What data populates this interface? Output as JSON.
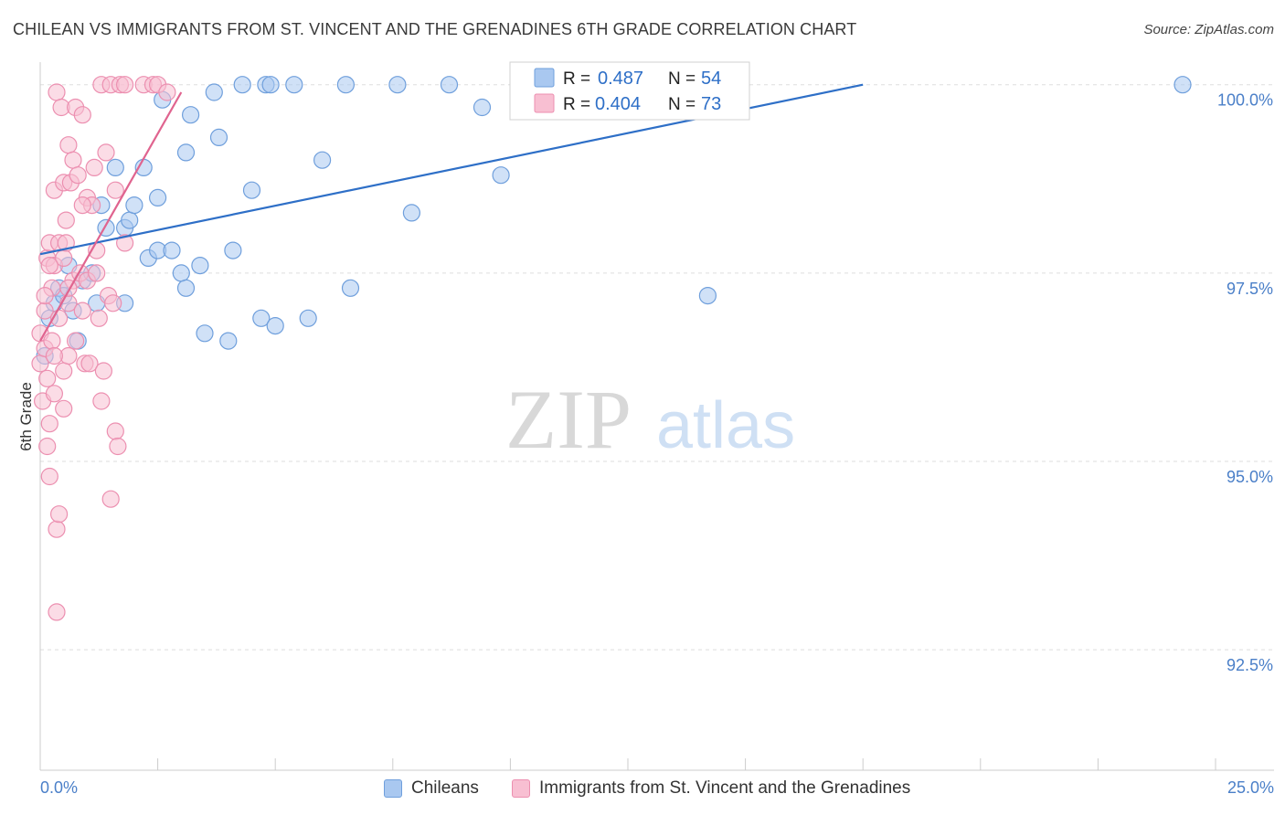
{
  "title": "CHILEAN VS IMMIGRANTS FROM ST. VINCENT AND THE GRENADINES 6TH GRADE CORRELATION CHART",
  "source": "Source: ZipAtlas.com",
  "watermark": {
    "zip": "ZIP",
    "atlas": "atlas"
  },
  "colors": {
    "blue_fill": "#a9c8f0",
    "blue_stroke": "#6f9fdc",
    "blue_line": "#2e6fc7",
    "pink_fill": "#f8bfd2",
    "pink_stroke": "#ec8fb0",
    "pink_line": "#e0648f",
    "tick_label": "#4a7fc8",
    "grid": "#dddddd"
  },
  "legend": {
    "r_label": "R =",
    "n_label": "N =",
    "entries": [
      {
        "r": "0.487",
        "n": "54"
      },
      {
        "r": "0.404",
        "n": "73"
      }
    ]
  },
  "x_axis": {
    "min_label": "0.0%",
    "max_label": "25.0%"
  },
  "chart_data": {
    "type": "scatter",
    "title": "CHILEAN VS IMMIGRANTS FROM ST. VINCENT AND THE GRENADINES 6TH GRADE CORRELATION CHART",
    "xlabel": "",
    "ylabel": "6th Grade",
    "xlim": [
      0,
      25
    ],
    "ylim": [
      90.9,
      100.3
    ],
    "y_ticks": [
      92.5,
      95.0,
      97.5,
      100.0
    ],
    "y_tick_labels": [
      "92.5%",
      "95.0%",
      "97.5%",
      "100.0%"
    ],
    "grid": "horizontal dashed",
    "legend_placement": "top-center",
    "series": [
      {
        "name": "Chileans",
        "color": "#a9c8f0",
        "r": 0.487,
        "n": 54,
        "trend": {
          "x": [
            0.0,
            17.5
          ],
          "y": [
            97.75,
            100.0
          ]
        },
        "points": [
          [
            0.1,
            96.4
          ],
          [
            0.2,
            96.9
          ],
          [
            0.3,
            97.1
          ],
          [
            0.4,
            97.3
          ],
          [
            0.6,
            97.6
          ],
          [
            0.7,
            97.0
          ],
          [
            0.8,
            96.6
          ],
          [
            0.9,
            97.4
          ],
          [
            1.1,
            97.5
          ],
          [
            1.2,
            97.1
          ],
          [
            1.3,
            98.4
          ],
          [
            1.4,
            98.1
          ],
          [
            1.6,
            98.9
          ],
          [
            1.8,
            98.1
          ],
          [
            1.8,
            97.1
          ],
          [
            1.9,
            98.2
          ],
          [
            2.0,
            98.4
          ],
          [
            2.2,
            98.9
          ],
          [
            2.3,
            97.7
          ],
          [
            2.5,
            98.5
          ],
          [
            2.5,
            97.8
          ],
          [
            2.6,
            99.8
          ],
          [
            2.8,
            97.8
          ],
          [
            3.0,
            97.5
          ],
          [
            3.1,
            97.3
          ],
          [
            3.1,
            99.1
          ],
          [
            3.2,
            99.6
          ],
          [
            3.4,
            97.6
          ],
          [
            3.5,
            96.7
          ],
          [
            3.7,
            99.9
          ],
          [
            3.8,
            99.3
          ],
          [
            4.0,
            96.6
          ],
          [
            4.1,
            97.8
          ],
          [
            4.3,
            100.0
          ],
          [
            4.5,
            98.6
          ],
          [
            4.7,
            96.9
          ],
          [
            4.8,
            100.0
          ],
          [
            4.9,
            100.0
          ],
          [
            5.0,
            96.8
          ],
          [
            5.4,
            100.0
          ],
          [
            5.7,
            96.9
          ],
          [
            6.0,
            99.0
          ],
          [
            6.5,
            100.0
          ],
          [
            6.6,
            97.3
          ],
          [
            7.6,
            100.0
          ],
          [
            7.9,
            98.3
          ],
          [
            8.7,
            100.0
          ],
          [
            9.4,
            99.7
          ],
          [
            9.8,
            98.8
          ],
          [
            12.3,
            100.0
          ],
          [
            14.2,
            97.2
          ],
          [
            14.2,
            100.0
          ],
          [
            24.3,
            100.0
          ],
          [
            0.5,
            97.2
          ]
        ]
      },
      {
        "name": "Immigrants from St. Vincent and the Grenadines",
        "color": "#f8bfd2",
        "r": 0.404,
        "n": 73,
        "trend": {
          "x": [
            0.0,
            3.0
          ],
          "y": [
            96.6,
            99.9
          ]
        },
        "points": [
          [
            0.0,
            96.7
          ],
          [
            0.0,
            96.3
          ],
          [
            0.05,
            95.8
          ],
          [
            0.1,
            97.0
          ],
          [
            0.1,
            96.5
          ],
          [
            0.15,
            97.7
          ],
          [
            0.15,
            96.1
          ],
          [
            0.2,
            97.9
          ],
          [
            0.2,
            95.5
          ],
          [
            0.2,
            94.8
          ],
          [
            0.25,
            97.3
          ],
          [
            0.25,
            96.6
          ],
          [
            0.3,
            98.6
          ],
          [
            0.3,
            97.6
          ],
          [
            0.3,
            95.9
          ],
          [
            0.35,
            99.9
          ],
          [
            0.35,
            94.1
          ],
          [
            0.35,
            93.0
          ],
          [
            0.4,
            97.9
          ],
          [
            0.4,
            96.9
          ],
          [
            0.4,
            94.3
          ],
          [
            0.45,
            99.7
          ],
          [
            0.5,
            98.7
          ],
          [
            0.5,
            97.7
          ],
          [
            0.5,
            96.2
          ],
          [
            0.5,
            95.7
          ],
          [
            0.55,
            98.2
          ],
          [
            0.55,
            97.9
          ],
          [
            0.6,
            99.2
          ],
          [
            0.6,
            97.1
          ],
          [
            0.6,
            96.4
          ],
          [
            0.65,
            98.7
          ],
          [
            0.7,
            99.0
          ],
          [
            0.7,
            97.4
          ],
          [
            0.75,
            99.7
          ],
          [
            0.75,
            96.6
          ],
          [
            0.8,
            98.8
          ],
          [
            0.85,
            97.5
          ],
          [
            0.9,
            99.6
          ],
          [
            0.9,
            97.0
          ],
          [
            0.95,
            96.3
          ],
          [
            1.0,
            98.5
          ],
          [
            1.0,
            97.4
          ],
          [
            1.05,
            96.3
          ],
          [
            1.1,
            98.4
          ],
          [
            1.15,
            98.9
          ],
          [
            1.2,
            97.5
          ],
          [
            1.25,
            96.9
          ],
          [
            1.3,
            100.0
          ],
          [
            1.3,
            95.8
          ],
          [
            1.35,
            96.2
          ],
          [
            1.4,
            99.1
          ],
          [
            1.45,
            97.2
          ],
          [
            1.5,
            100.0
          ],
          [
            1.5,
            94.5
          ],
          [
            1.55,
            97.1
          ],
          [
            1.6,
            98.6
          ],
          [
            1.6,
            95.4
          ],
          [
            1.65,
            95.2
          ],
          [
            1.7,
            100.0
          ],
          [
            1.8,
            100.0
          ],
          [
            1.8,
            97.9
          ],
          [
            2.2,
            100.0
          ],
          [
            2.4,
            100.0
          ],
          [
            2.5,
            100.0
          ],
          [
            2.7,
            99.9
          ],
          [
            0.1,
            97.2
          ],
          [
            0.2,
            97.6
          ],
          [
            0.3,
            96.4
          ],
          [
            0.6,
            97.3
          ],
          [
            0.9,
            98.4
          ],
          [
            1.2,
            97.8
          ],
          [
            0.15,
            95.2
          ]
        ]
      }
    ]
  }
}
